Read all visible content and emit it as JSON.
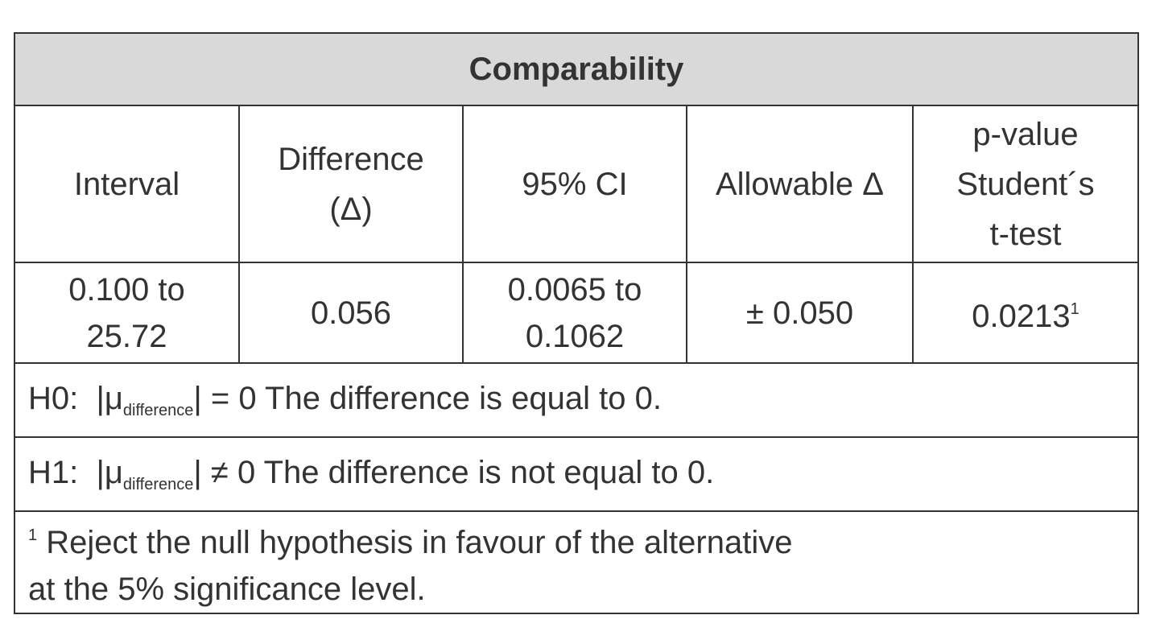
{
  "table": {
    "title": "Comparability",
    "header": [
      [
        "Interval"
      ],
      [
        "Difference",
        "(Δ)"
      ],
      [
        "95% CI"
      ],
      [
        "Allowable Δ"
      ],
      [
        "p-value",
        "Student´s",
        "t-test"
      ]
    ],
    "row": [
      [
        "0.100 to",
        "25.72"
      ],
      [
        "0.056"
      ],
      [
        "0.0065 to",
        "0.1062"
      ],
      [
        "± 0.050"
      ],
      {
        "text": "0.0213",
        "note": "1"
      }
    ],
    "h0": {
      "label": "H0:",
      "mu": "|μ",
      "sub": "difference",
      "rest": "| = 0 The difference is equal to 0."
    },
    "h1": {
      "label": "H1:",
      "mu": "|μ",
      "sub": "difference",
      "rest": "| ≠ 0 The difference is not equal to 0."
    },
    "footnote": {
      "marker": "1",
      "lines": [
        "Reject the null hypothesis in favour of the alternative",
        "at the 5% significance level."
      ]
    }
  }
}
